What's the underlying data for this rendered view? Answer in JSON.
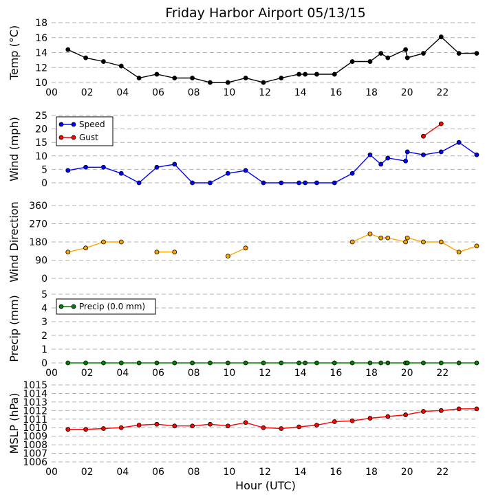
{
  "title": "Friday Harbor Airport 05/13/15",
  "xlabel": "Hour (UTC)",
  "x_ticks": [
    "00",
    "02",
    "04",
    "06",
    "08",
    "10",
    "12",
    "14",
    "16",
    "18",
    "20",
    "22"
  ],
  "chart_data": [
    {
      "type": "line",
      "ylabel": "Temp (°C)",
      "ylim": [
        10,
        18
      ],
      "yticks": [
        "10",
        "12",
        "14",
        "16",
        "18"
      ],
      "grid": "horizontal dashed",
      "series": [
        {
          "color": "#000000",
          "x": [
            0.92,
            1.92,
            2.92,
            3.92,
            4.92,
            5.92,
            6.92,
            7.92,
            8.92,
            9.92,
            10.92,
            11.92,
            12.92,
            13.92,
            14.27,
            14.92,
            15.92,
            16.92,
            17.92,
            18.53,
            18.92,
            19.92,
            20.02,
            20.92,
            21.92,
            22.92,
            23.92
          ],
          "y": [
            14.4,
            13.3,
            12.8,
            12.2,
            10.6,
            11.1,
            10.6,
            10.6,
            10.0,
            10.0,
            10.6,
            10.0,
            10.6,
            11.1,
            11.1,
            11.1,
            11.1,
            12.8,
            12.8,
            13.9,
            13.3,
            14.4,
            13.3,
            13.9,
            16.1,
            13.9,
            13.9
          ]
        }
      ]
    },
    {
      "type": "line",
      "ylabel": "Wind (mph)",
      "ylim": [
        0,
        25
      ],
      "yticks": [
        "0",
        "5",
        "10",
        "15",
        "20",
        "25"
      ],
      "grid": "horizontal dashed",
      "legend": "top-left",
      "series": [
        {
          "name": "Speed",
          "color": "#0000ff",
          "x": [
            0.92,
            1.92,
            2.92,
            3.92,
            4.92,
            5.92,
            6.92,
            7.92,
            8.92,
            9.92,
            10.92,
            11.92,
            12.92,
            13.92,
            14.27,
            14.92,
            15.92,
            16.92,
            17.92,
            18.53,
            18.92,
            19.92,
            20.02,
            20.92,
            21.92,
            22.92,
            23.92
          ],
          "y": [
            4.6,
            5.8,
            5.8,
            3.5,
            0,
            5.8,
            6.9,
            0,
            0,
            3.5,
            4.6,
            0,
            0,
            0,
            0,
            0,
            0,
            3.5,
            10.4,
            6.9,
            9.2,
            8.1,
            11.5,
            10.4,
            11.5,
            15.0,
            10.4
          ]
        },
        {
          "name": "Gust",
          "color": "#ff0000",
          "x": [
            20.92,
            21.92
          ],
          "y": [
            17.3,
            21.9
          ]
        }
      ]
    },
    {
      "type": "line",
      "ylabel": "Wind Direction",
      "ylim": [
        0,
        360
      ],
      "yticks": [
        "0",
        "90",
        "180",
        "270",
        "360"
      ],
      "grid": "horizontal dashed",
      "series": [
        {
          "color": "#ffa500",
          "segments": [
            {
              "x": [
                0.92,
                1.92,
                2.92,
                3.92
              ],
              "y": [
                130,
                150,
                180,
                180
              ]
            },
            {
              "x": [
                5.92,
                6.92
              ],
              "y": [
                130,
                130
              ]
            },
            {
              "x": [
                9.92,
                10.92
              ],
              "y": [
                110,
                150
              ]
            },
            {
              "x": [
                16.92,
                17.92,
                18.53,
                18.92,
                19.92,
                20.02,
                20.92,
                21.92,
                22.92,
                23.92
              ],
              "y": [
                180,
                220,
                200,
                200,
                180,
                200,
                180,
                180,
                130,
                160
              ]
            }
          ]
        }
      ]
    },
    {
      "type": "line",
      "ylabel": "Precip (mm)",
      "ylim": [
        0,
        5
      ],
      "yticks": [
        "0",
        "1",
        "2",
        "3",
        "4",
        "5"
      ],
      "grid": "horizontal dashed",
      "legend": "top-left",
      "series": [
        {
          "name": "Precip (0.0 mm)",
          "color": "#008000",
          "x": [
            0.92,
            1.92,
            2.92,
            3.92,
            4.92,
            5.92,
            6.92,
            7.92,
            8.92,
            9.92,
            10.92,
            11.92,
            12.92,
            13.92,
            14.27,
            14.92,
            15.92,
            16.92,
            17.92,
            18.53,
            18.92,
            19.92,
            20.02,
            20.92,
            21.92,
            22.92,
            23.92
          ],
          "y": [
            0,
            0,
            0,
            0,
            0,
            0,
            0,
            0,
            0,
            0,
            0,
            0,
            0,
            0,
            0,
            0,
            0,
            0,
            0,
            0,
            0,
            0,
            0,
            0,
            0,
            0,
            0
          ]
        }
      ]
    },
    {
      "type": "line",
      "ylabel": "MSLP (hPa)",
      "ylim": [
        1006,
        1015
      ],
      "yticks": [
        "1006",
        "1007",
        "1008",
        "1009",
        "1010",
        "1011",
        "1012",
        "1013",
        "1014",
        "1015"
      ],
      "grid": "horizontal dashed",
      "series": [
        {
          "color": "#ff0000",
          "x": [
            0.92,
            1.92,
            2.92,
            3.92,
            4.92,
            5.92,
            6.92,
            7.92,
            8.92,
            9.92,
            10.92,
            11.92,
            12.92,
            13.92,
            14.92,
            15.92,
            16.92,
            17.92,
            18.92,
            19.92,
            20.92,
            21.92,
            22.92,
            23.92
          ],
          "y": [
            1009.8,
            1009.8,
            1009.9,
            1010.0,
            1010.3,
            1010.4,
            1010.2,
            1010.2,
            1010.4,
            1010.2,
            1010.6,
            1010.0,
            1009.9,
            1010.1,
            1010.3,
            1010.7,
            1010.8,
            1011.1,
            1011.3,
            1011.5,
            1011.9,
            1012.0,
            1012.2,
            1012.2
          ]
        }
      ]
    }
  ]
}
